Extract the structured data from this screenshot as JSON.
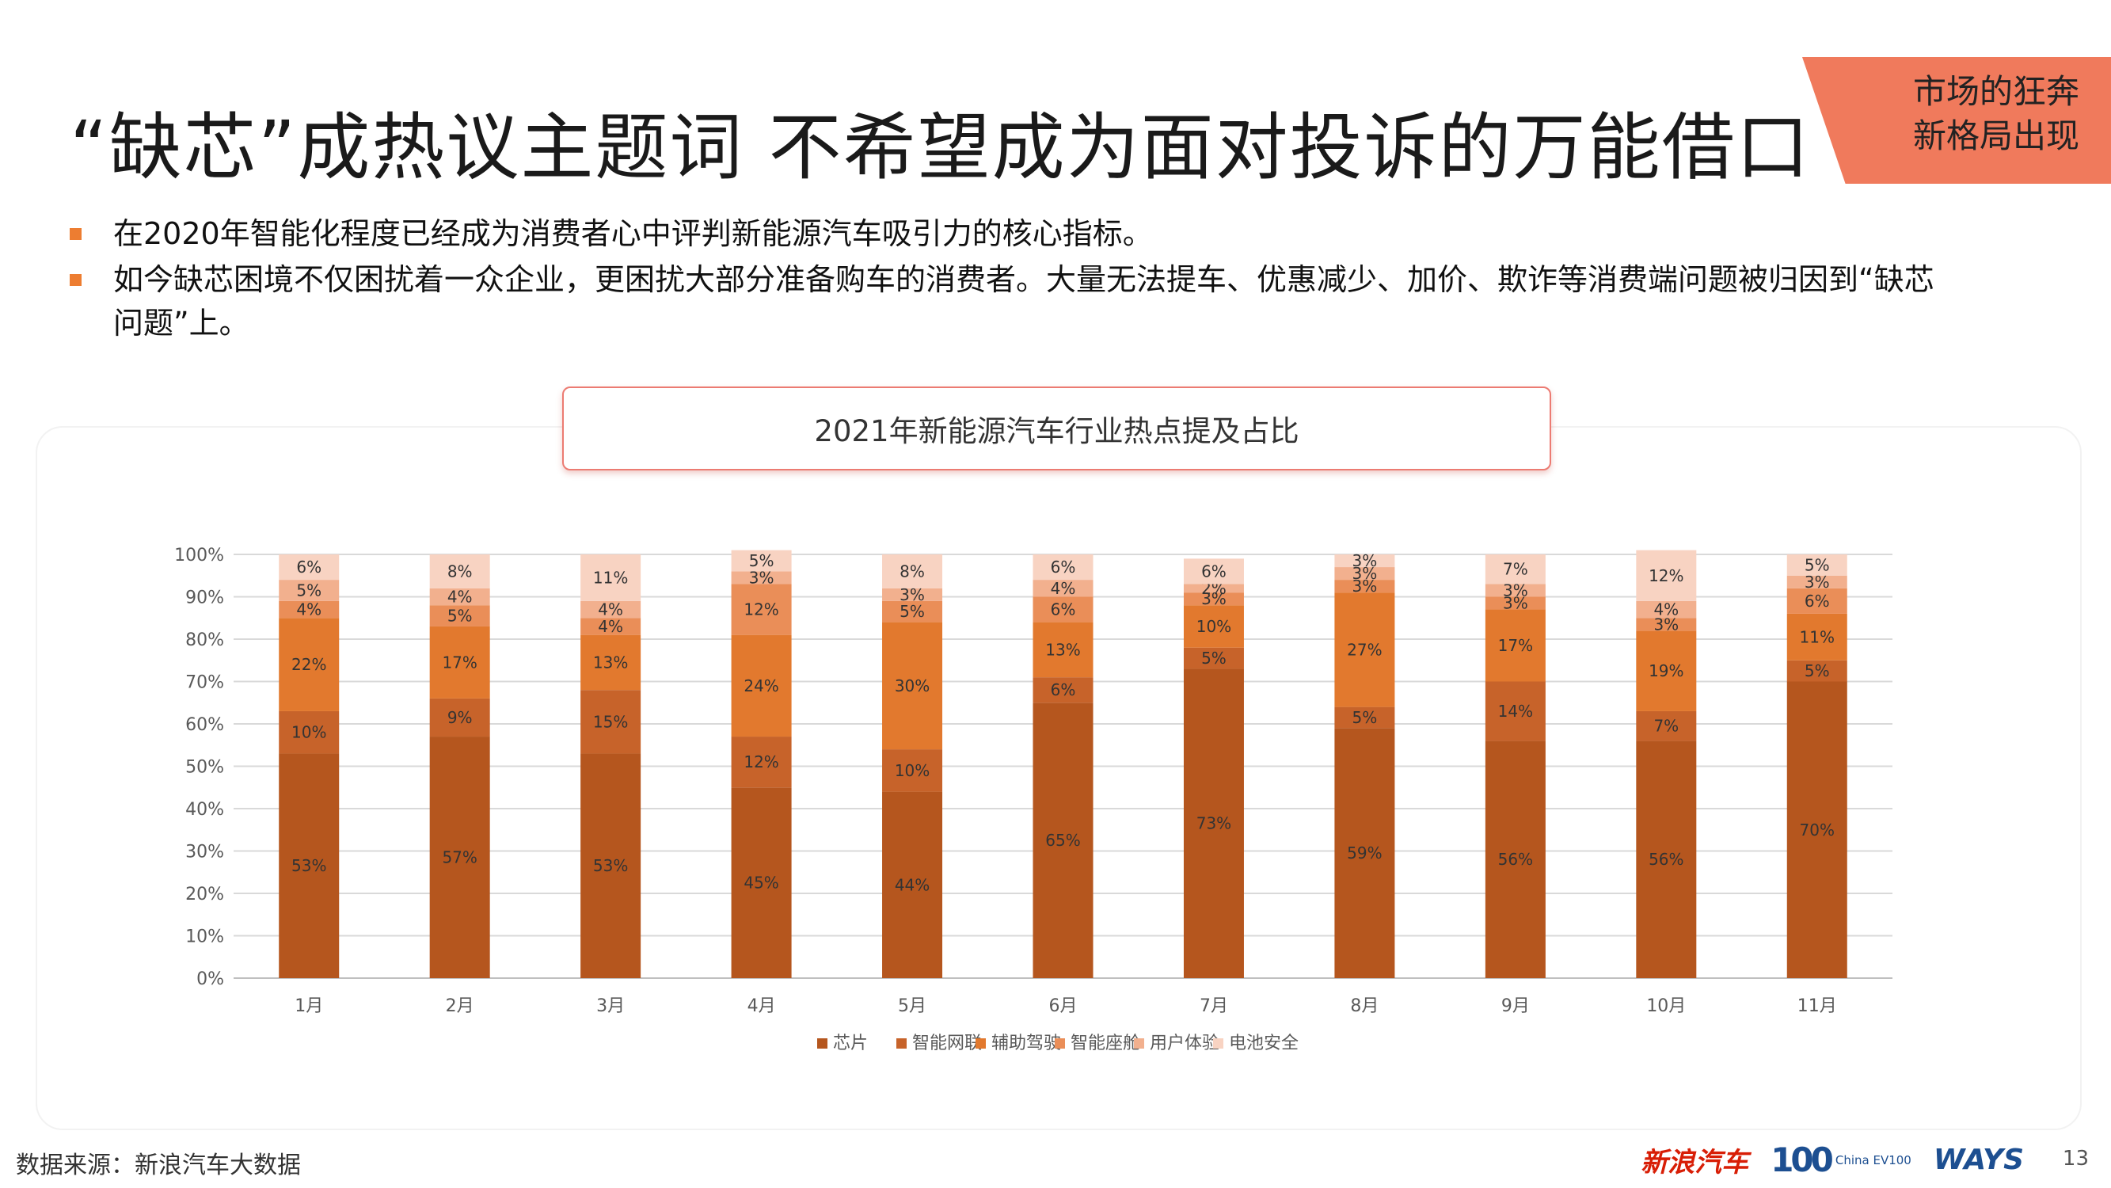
{
  "slide": {
    "title": "“缺芯”成热议主题词 不希望成为面对投诉的万能借口",
    "corner_label": "市场的狂奔\n新格局出现",
    "bullets": [
      "在2020年智能化程度已经成为消费者心中评判新能源汽车吸引力的核心指标。",
      "如今缺芯困境不仅困扰着一众企业，更困扰大部分准备购车的消费者。大量无法提车、优惠减少、加价、欺诈等消费端问题被归因到“缺芯问题”上。"
    ],
    "source": "数据来源：新浪汽车大数据",
    "page_number": "13",
    "logos": {
      "sina": "新浪汽车",
      "chinaev100_big": "100",
      "chinaev100_small": "China EV100",
      "ways": "WAYS"
    },
    "accent_color": "#ed7d31",
    "corner_color": "#f07a5c"
  },
  "chart_data": {
    "type": "bar",
    "stacked": true,
    "title": "2021年新能源汽车行业热点提及占比",
    "categories": [
      "1月",
      "2月",
      "3月",
      "4月",
      "5月",
      "6月",
      "7月",
      "8月",
      "9月",
      "10月",
      "11月"
    ],
    "ylim": [
      0,
      100
    ],
    "yticks": [
      "0%",
      "10%",
      "20%",
      "30%",
      "40%",
      "50%",
      "60%",
      "70%",
      "80%",
      "90%",
      "100%"
    ],
    "grid": true,
    "legend_position": "bottom",
    "series": [
      {
        "name": "芯片",
        "color": "#b5561e",
        "values": [
          53,
          57,
          53,
          45,
          44,
          65,
          73,
          59,
          56,
          56,
          70
        ]
      },
      {
        "name": "智能网联",
        "color": "#c7632a",
        "values": [
          10,
          9,
          15,
          12,
          10,
          6,
          5,
          5,
          14,
          7,
          5
        ]
      },
      {
        "name": "辅助驾驶",
        "color": "#e2792e",
        "values": [
          22,
          17,
          13,
          24,
          30,
          13,
          10,
          27,
          17,
          19,
          11
        ]
      },
      {
        "name": "智能座舱",
        "color": "#ea8e58",
        "values": [
          4,
          5,
          4,
          12,
          5,
          6,
          3,
          3,
          3,
          3,
          6
        ]
      },
      {
        "name": "用户体验",
        "color": "#f2b08e",
        "values": [
          5,
          4,
          4,
          3,
          3,
          4,
          2,
          3,
          3,
          4,
          3
        ]
      },
      {
        "name": "电池安全",
        "color": "#f8d3c2",
        "values": [
          6,
          8,
          11,
          5,
          8,
          6,
          6,
          3,
          7,
          12,
          5
        ]
      }
    ]
  }
}
